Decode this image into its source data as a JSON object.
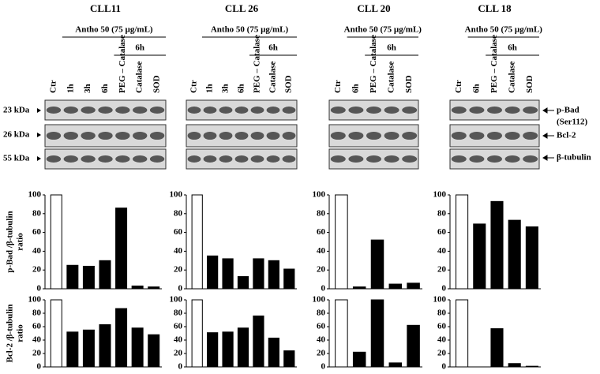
{
  "panels": [
    {
      "title": "CLL11",
      "treatment": "Antho 50 (75 µg/mL)",
      "timepoint": "6h",
      "lanes": [
        "Ctr",
        "1h",
        "3h",
        "6h",
        "PEG – Catalase",
        "Catalase",
        "SOD"
      ]
    },
    {
      "title": "CLL 26",
      "treatment": "Antho 50 (75 µg/mL)",
      "timepoint": "6h",
      "lanes": [
        "Ctr",
        "1h",
        "3h",
        "6h",
        "PEG – Catalase",
        "Catalase",
        "SOD"
      ]
    },
    {
      "title": "CLL 20",
      "treatment": "Antho 50 (75 µg/mL)",
      "timepoint": "6h",
      "lanes": [
        "Ctr",
        "6h",
        "PEG – Catalase",
        "Catalase",
        "SOD"
      ]
    },
    {
      "title": "CLL 18",
      "treatment": "Antho 50 (75 µg/mL)",
      "timepoint": "6h",
      "lanes": [
        "Ctr",
        "6h",
        "PEG – Catalase",
        "Catalase",
        "SOD"
      ]
    }
  ],
  "markers": [
    "23 kDa",
    "26 kDa",
    "55 kDa"
  ],
  "proteins": [
    "p-Bad",
    "Bcl-2",
    "β-tubulin"
  ],
  "phospho_site": "(Ser112)",
  "chart_data": [
    {
      "type": "bar",
      "ylabel": [
        "p-Bad /β-tubulin",
        "ratio"
      ],
      "values": [
        100,
        25,
        24,
        30,
        86,
        3,
        2
      ],
      "colors": [
        "#ffffff",
        "#000000",
        "#000000",
        "#000000",
        "#000000",
        "#000000",
        "#000000"
      ],
      "ylim": [
        0,
        100
      ],
      "yticks": [
        0,
        20,
        40,
        60,
        80,
        100
      ]
    },
    {
      "type": "bar",
      "values": [
        100,
        35,
        32,
        13,
        32,
        30,
        21
      ],
      "colors": [
        "#ffffff",
        "#000000",
        "#000000",
        "#000000",
        "#000000",
        "#000000",
        "#000000"
      ],
      "ylim": [
        0,
        100
      ],
      "yticks": [
        0,
        20,
        40,
        60,
        80,
        100
      ]
    },
    {
      "type": "bar",
      "values": [
        100,
        2,
        52,
        5,
        6
      ],
      "colors": [
        "#ffffff",
        "#000000",
        "#000000",
        "#000000",
        "#000000"
      ],
      "ylim": [
        0,
        100
      ],
      "yticks": [
        0,
        20,
        40,
        60,
        80,
        100
      ]
    },
    {
      "type": "bar",
      "values": [
        100,
        69,
        93,
        73,
        66
      ],
      "colors": [
        "#ffffff",
        "#000000",
        "#000000",
        "#000000",
        "#000000"
      ],
      "ylim": [
        0,
        100
      ],
      "yticks": [
        0,
        20,
        40,
        60,
        80,
        100
      ]
    },
    {
      "type": "bar",
      "ylabel": [
        "Bcl-2 /β-tubulin",
        "ratio"
      ],
      "values": [
        100,
        52,
        55,
        63,
        87,
        58,
        48
      ],
      "colors": [
        "#ffffff",
        "#000000",
        "#000000",
        "#000000",
        "#000000",
        "#000000",
        "#000000"
      ],
      "ylim": [
        0,
        100
      ],
      "yticks": [
        0,
        20,
        40,
        60,
        80,
        100
      ]
    },
    {
      "type": "bar",
      "values": [
        100,
        51,
        52,
        58,
        76,
        43,
        24
      ],
      "colors": [
        "#ffffff",
        "#000000",
        "#000000",
        "#000000",
        "#000000",
        "#000000",
        "#000000"
      ],
      "ylim": [
        0,
        100
      ],
      "yticks": [
        0,
        20,
        40,
        60,
        80,
        100
      ]
    },
    {
      "type": "bar",
      "values": [
        100,
        22,
        100,
        6,
        62
      ],
      "colors": [
        "#ffffff",
        "#000000",
        "#000000",
        "#000000",
        "#000000"
      ],
      "ylim": [
        0,
        100
      ],
      "yticks": [
        0,
        20,
        40,
        60,
        80,
        100
      ]
    },
    {
      "type": "bar",
      "values": [
        100,
        0,
        57,
        5,
        1
      ],
      "colors": [
        "#ffffff",
        "#000000",
        "#000000",
        "#000000",
        "#000000"
      ],
      "ylim": [
        0,
        100
      ],
      "yticks": [
        0,
        20,
        40,
        60,
        80,
        100
      ]
    }
  ]
}
